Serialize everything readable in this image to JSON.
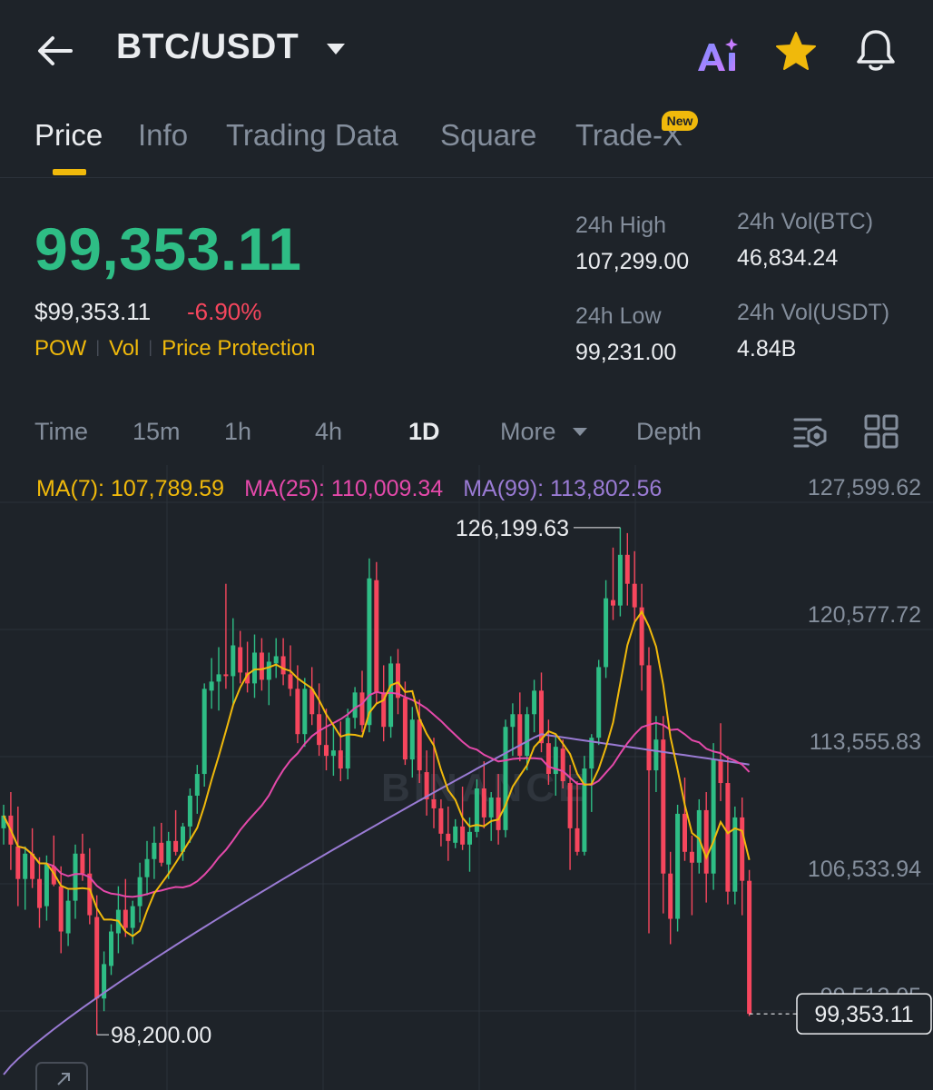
{
  "header": {
    "pair": "BTC/USDT",
    "icons": [
      "back-arrow-icon",
      "dropdown-caret-icon",
      "ai-icon",
      "star-icon",
      "bell-icon"
    ],
    "favorite_color": "#f0b90b"
  },
  "tabs": [
    {
      "label": "Price",
      "active": true
    },
    {
      "label": "Info",
      "active": false
    },
    {
      "label": "Trading Data",
      "active": false
    },
    {
      "label": "Square",
      "active": false
    },
    {
      "label": "Trade-X",
      "active": false,
      "badge": "New"
    }
  ],
  "price": {
    "last": "99,353.11",
    "usd": "$99,353.11",
    "change": "-6.90%",
    "tags": [
      "POW",
      "Vol",
      "Price Protection"
    ]
  },
  "stats": {
    "high_label": "24h High",
    "high_value": "107,299.00",
    "low_label": "24h Low",
    "low_value": "99,231.00",
    "vol_btc_label": "24h Vol(BTC)",
    "vol_btc_value": "46,834.24",
    "vol_usdt_label": "24h Vol(USDT)",
    "vol_usdt_value": "4.84B"
  },
  "intervals": [
    {
      "label": "Time",
      "active": false
    },
    {
      "label": "15m",
      "active": false
    },
    {
      "label": "1h",
      "active": false
    },
    {
      "label": "4h",
      "active": false
    },
    {
      "label": "1D",
      "active": true
    },
    {
      "label": "More",
      "active": false
    },
    {
      "label": "Depth",
      "active": false
    }
  ],
  "ma": {
    "ma7": "MA(7): 107,789.59",
    "ma25": "MA(25): 110,009.34",
    "ma99": "MA(99): 113,802.56"
  },
  "chart": {
    "watermark": "BINANCE",
    "high_marker": "126,199.63",
    "low_marker": "98,200.00",
    "current_price_tag": "99,353.11",
    "y_tick_labels": [
      "127,599.62",
      "120,577.72",
      "113,555.83",
      "106,533.94",
      "99,512.05"
    ],
    "colors": {
      "up": "#2ebd85",
      "down": "#f6465d",
      "ma7": "#f0b90b",
      "ma25": "#e449aa",
      "ma99": "#9a7bd4"
    }
  },
  "chart_data": {
    "type": "candlestick",
    "interval": "1D",
    "y_ticks": [
      127599.62,
      120577.72,
      113555.83,
      106533.94,
      99512.05
    ],
    "ylim": [
      97000,
      128500
    ],
    "grid": true,
    "annotations": {
      "max": 126199.63,
      "min": 98200.0,
      "last": 99353.11
    },
    "candles": [
      [
        109600,
        110900,
        108700,
        110300
      ],
      [
        110300,
        111600,
        107300,
        108700
      ],
      [
        108600,
        110800,
        105300,
        106800
      ],
      [
        106800,
        108600,
        105100,
        108200
      ],
      [
        108200,
        109600,
        106300,
        106800
      ],
      [
        106800,
        108000,
        104100,
        105200
      ],
      [
        105300,
        108100,
        104500,
        107600
      ],
      [
        107500,
        109200,
        106400,
        106500
      ],
      [
        106400,
        107500,
        102700,
        103900
      ],
      [
        103800,
        106200,
        103100,
        105600
      ],
      [
        105600,
        108700,
        104600,
        108200
      ],
      [
        108200,
        109300,
        106700,
        107100
      ],
      [
        107100,
        108500,
        104300,
        104800
      ],
      [
        104700,
        105900,
        98200,
        100200
      ],
      [
        100200,
        102800,
        99500,
        102100
      ],
      [
        102000,
        104300,
        101500,
        103900
      ],
      [
        103800,
        106400,
        102700,
        105100
      ],
      [
        105100,
        106800,
        103600,
        104100
      ],
      [
        104100,
        105600,
        103200,
        105300
      ],
      [
        105300,
        107700,
        104400,
        106900
      ],
      [
        106900,
        108900,
        105900,
        107900
      ],
      [
        107900,
        109700,
        106800,
        108800
      ],
      [
        108800,
        109900,
        107500,
        107700
      ],
      [
        107600,
        109400,
        106800,
        108900
      ],
      [
        108900,
        110600,
        108100,
        108300
      ],
      [
        108300,
        109900,
        107800,
        109700
      ],
      [
        109700,
        111800,
        108800,
        111400
      ],
      [
        111400,
        113100,
        110400,
        112600
      ],
      [
        112600,
        117600,
        111900,
        117300
      ],
      [
        117200,
        119000,
        116200,
        117700
      ],
      [
        117700,
        119600,
        116100,
        118100
      ],
      [
        118100,
        123100,
        117300,
        118000
      ],
      [
        118000,
        121200,
        116300,
        119700
      ],
      [
        119600,
        120500,
        117600,
        118200
      ],
      [
        118200,
        119900,
        117100,
        117600
      ],
      [
        117600,
        120300,
        116800,
        119300
      ],
      [
        119300,
        120100,
        117200,
        117800
      ],
      [
        117800,
        119300,
        116400,
        118800
      ],
      [
        118700,
        120100,
        117900,
        119100
      ],
      [
        119100,
        120100,
        117500,
        118100
      ],
      [
        118100,
        119700,
        116900,
        117300
      ],
      [
        117300,
        118600,
        114300,
        114800
      ],
      [
        114800,
        117900,
        114100,
        117300
      ],
      [
        117300,
        118500,
        115300,
        115900
      ],
      [
        115900,
        117600,
        113600,
        114200
      ],
      [
        114200,
        116200,
        112800,
        113600
      ],
      [
        113600,
        115300,
        112500,
        113900
      ],
      [
        113900,
        115500,
        112200,
        112900
      ],
      [
        112900,
        116200,
        112300,
        115700
      ],
      [
        115700,
        117400,
        115100,
        117100
      ],
      [
        117100,
        118300,
        114900,
        115300
      ],
      [
        115300,
        124500,
        114900,
        123400
      ],
      [
        123300,
        124300,
        116500,
        117100
      ],
      [
        117100,
        118600,
        114400,
        115200
      ],
      [
        115200,
        119100,
        114600,
        118700
      ],
      [
        118700,
        119500,
        115900,
        116800
      ],
      [
        116800,
        117700,
        113100,
        113400
      ],
      [
        113400,
        116300,
        112400,
        115600
      ],
      [
        115600,
        116700,
        112100,
        112800
      ],
      [
        112700,
        113900,
        110300,
        111200
      ],
      [
        111200,
        114600,
        109600,
        110700
      ],
      [
        110700,
        111200,
        108600,
        109300
      ],
      [
        109300,
        110800,
        107800,
        108900
      ],
      [
        108800,
        110100,
        108500,
        109700
      ],
      [
        109700,
        111900,
        108400,
        108700
      ],
      [
        108700,
        110200,
        107200,
        109400
      ],
      [
        109400,
        112300,
        109100,
        111800
      ],
      [
        111800,
        113300,
        109600,
        110200
      ],
      [
        110200,
        111600,
        108900,
        111300
      ],
      [
        111300,
        112600,
        108700,
        109500
      ],
      [
        109500,
        115600,
        109100,
        115200
      ],
      [
        115200,
        116500,
        113600,
        115900
      ],
      [
        115900,
        117100,
        113300,
        113600
      ],
      [
        113600,
        116300,
        112800,
        115900
      ],
      [
        115900,
        117800,
        114900,
        117200
      ],
      [
        117200,
        118200,
        113800,
        114300
      ],
      [
        114300,
        115600,
        112000,
        112600
      ],
      [
        112600,
        114800,
        111400,
        114100
      ],
      [
        114000,
        114500,
        111800,
        112200
      ],
      [
        112100,
        113100,
        107300,
        109600
      ],
      [
        109600,
        112200,
        108100,
        108300
      ],
      [
        108300,
        113600,
        108100,
        112900
      ],
      [
        112900,
        114800,
        110500,
        114600
      ],
      [
        114600,
        118900,
        114200,
        118500
      ],
      [
        118500,
        123300,
        117900,
        122300
      ],
      [
        122200,
        125100,
        121100,
        121900
      ],
      [
        121900,
        126199.63,
        121300,
        124700
      ],
      [
        124700,
        125900,
        121900,
        123100
      ],
      [
        123100,
        124900,
        120900,
        121800
      ],
      [
        121800,
        123100,
        117200,
        118600
      ],
      [
        118600,
        119600,
        103800,
        112800
      ],
      [
        112800,
        115800,
        111600,
        114500
      ],
      [
        114500,
        115800,
        104900,
        107100
      ],
      [
        107100,
        108300,
        103200,
        104600
      ],
      [
        104600,
        110900,
        103900,
        110400
      ],
      [
        110400,
        112400,
        107800,
        108300
      ],
      [
        108300,
        109200,
        104800,
        107700
      ],
      [
        107700,
        111200,
        107100,
        110600
      ],
      [
        110600,
        111600,
        105500,
        107100
      ],
      [
        107100,
        114300,
        106200,
        113400
      ],
      [
        113400,
        115400,
        111100,
        112100
      ],
      [
        112100,
        113600,
        105400,
        106100
      ],
      [
        106100,
        110800,
        105400,
        110200
      ],
      [
        110200,
        111300,
        104800,
        106700
      ],
      [
        106700,
        107299,
        99231,
        99353.11
      ]
    ],
    "volume_note": ""
  }
}
